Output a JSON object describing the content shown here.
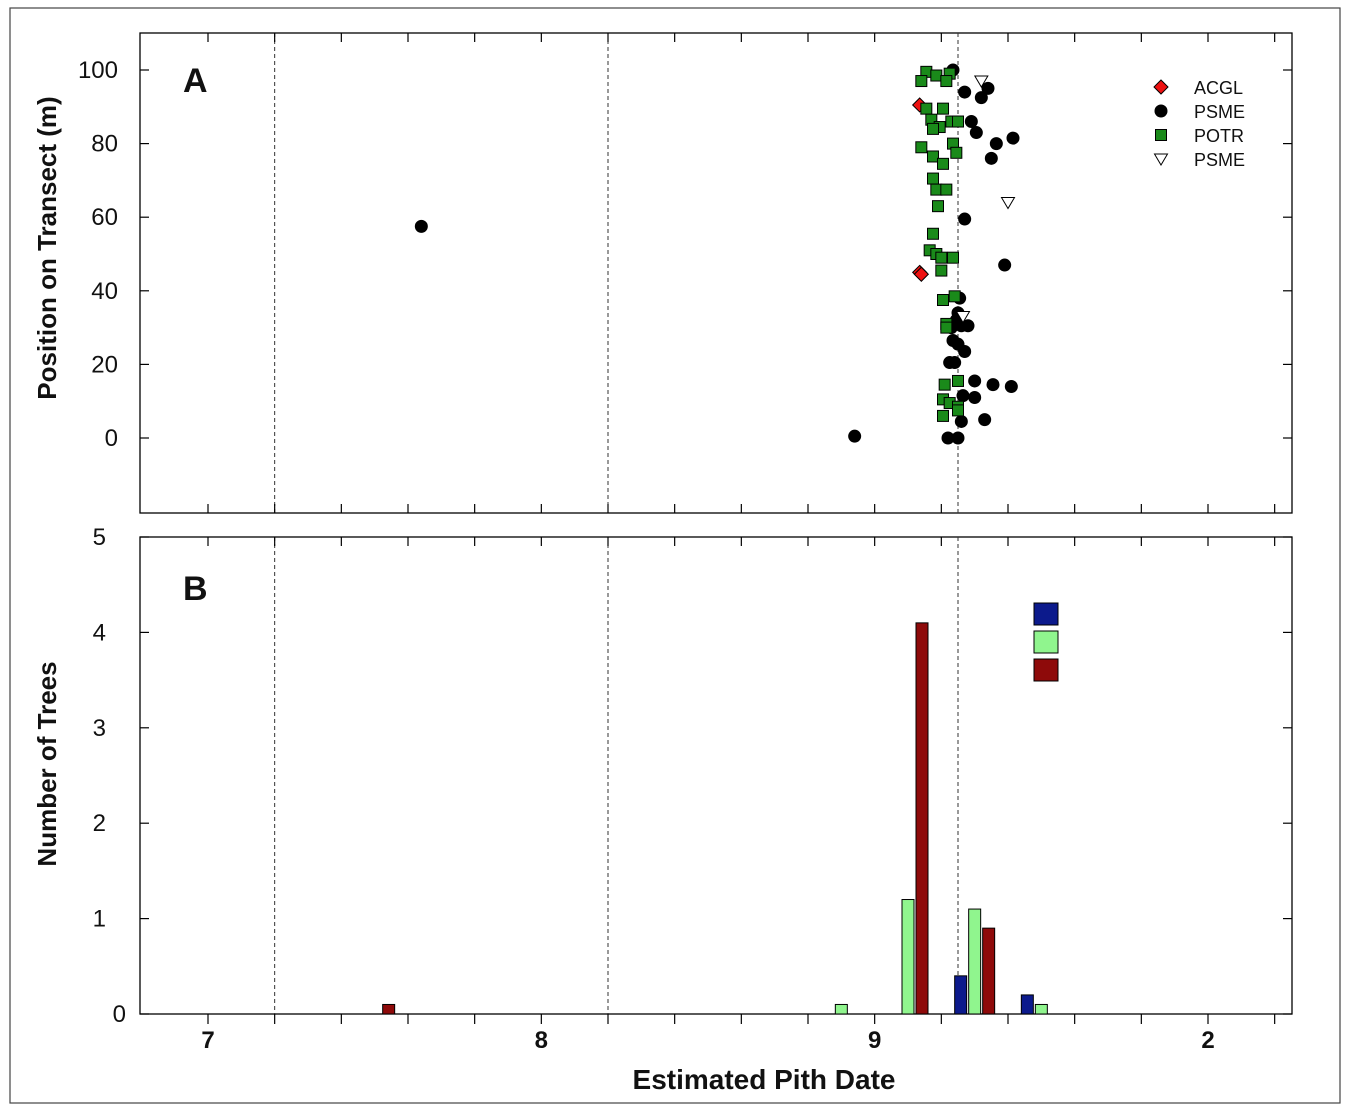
{
  "chart_data": [
    {
      "type": "scatter",
      "panel_label": "A",
      "xlabel": "",
      "ylabel": "Position on Transect (m)",
      "xlim": [
        1700,
        2025
      ],
      "ylim": [
        -20,
        110
      ],
      "x_ticks": [
        1700,
        1800,
        1900,
        2000
      ],
      "x_tick_labels": [
        "",
        "",
        "",
        ""
      ],
      "y_ticks": [
        0,
        20,
        40,
        60,
        80,
        100
      ],
      "y_tick_labels": [
        "0",
        "20",
        "40",
        "60",
        "80",
        "100"
      ],
      "reference_lines_x": [
        1720,
        1820,
        1925
      ],
      "grid": false,
      "legend_position": "top-right",
      "series": [
        {
          "name": "ACGL",
          "marker": "diamond",
          "color": "#ee1111",
          "points": [
            [
              1913.5,
              90.5
            ],
            [
              1913.5,
              45.0
            ],
            [
              1914,
              44.5
            ]
          ]
        },
        {
          "name": "PSME",
          "marker": "circle",
          "color": "#000000",
          "points": [
            [
              1764,
              57.5
            ],
            [
              1894,
              0.5
            ],
            [
              1923.5,
              100
            ],
            [
              1927,
              94
            ],
            [
              1932,
              92.5
            ],
            [
              1934,
              95
            ],
            [
              1929,
              86
            ],
            [
              1930.5,
              83
            ],
            [
              1936.5,
              80
            ],
            [
              1941.5,
              81.5
            ],
            [
              1935,
              76
            ],
            [
              1927,
              59.5
            ],
            [
              1939,
              47
            ],
            [
              1925.5,
              38
            ],
            [
              1925,
              34
            ],
            [
              1924.5,
              32
            ],
            [
              1923,
              30
            ],
            [
              1926,
              30.5
            ],
            [
              1928,
              30.5
            ],
            [
              1923.5,
              26.5
            ],
            [
              1925,
              25.5
            ],
            [
              1927,
              23.5
            ],
            [
              1922.5,
              20.5
            ],
            [
              1924,
              20.5
            ],
            [
              1930,
              15.5
            ],
            [
              1935.5,
              14.5
            ],
            [
              1941,
              14
            ],
            [
              1926.5,
              11.5
            ],
            [
              1930,
              11
            ],
            [
              1926,
              4.5
            ],
            [
              1933,
              5
            ],
            [
              1922,
              0
            ],
            [
              1925,
              0
            ]
          ]
        },
        {
          "name": "POTR",
          "marker": "square",
          "color": "#1a8a1a",
          "points": [
            [
              1915.5,
              99.5
            ],
            [
              1918.5,
              98.5
            ],
            [
              1922.5,
              99
            ],
            [
              1914,
              97
            ],
            [
              1921.5,
              97
            ],
            [
              1915.5,
              89.5
            ],
            [
              1920.5,
              89.5
            ],
            [
              1917,
              86.5
            ],
            [
              1919.5,
              84.5
            ],
            [
              1917.5,
              84
            ],
            [
              1923,
              86
            ],
            [
              1925,
              86
            ],
            [
              1923.5,
              80
            ],
            [
              1914,
              79
            ],
            [
              1917.5,
              76.5
            ],
            [
              1920.5,
              74.5
            ],
            [
              1924.5,
              77.5
            ],
            [
              1917.5,
              70.5
            ],
            [
              1918.5,
              67.5
            ],
            [
              1921.5,
              67.5
            ],
            [
              1919,
              63
            ],
            [
              1917.5,
              55.5
            ],
            [
              1916.5,
              51
            ],
            [
              1918.5,
              50
            ],
            [
              1920,
              49
            ],
            [
              1923.5,
              49
            ],
            [
              1920,
              45.5
            ],
            [
              1920.5,
              37.5
            ],
            [
              1924,
              38.5
            ],
            [
              1921.5,
              31
            ],
            [
              1921.5,
              30
            ],
            [
              1925,
              15.5
            ],
            [
              1921,
              14.5
            ],
            [
              1920.5,
              10.5
            ],
            [
              1922.5,
              9.5
            ],
            [
              1925,
              8.5
            ],
            [
              1925,
              7.5
            ],
            [
              1920.5,
              6
            ]
          ]
        },
        {
          "name": "PSME",
          "marker": "triangle-down",
          "color": "#000000",
          "points": [
            [
              1932,
              97
            ],
            [
              1940,
              64
            ],
            [
              1926.5,
              33
            ]
          ]
        }
      ]
    },
    {
      "type": "bar",
      "panel_label": "B",
      "xlabel": "Estimated Pith Date",
      "ylabel": "Number of Trees",
      "xlim": [
        1700,
        2025
      ],
      "ylim": [
        0,
        5
      ],
      "x_ticks": [
        1700,
        1800,
        1900,
        2000
      ],
      "x_tick_labels": [
        "7",
        "8",
        "9",
        "2"
      ],
      "y_ticks": [
        0,
        1,
        2,
        3,
        4,
        5
      ],
      "y_tick_labels": [
        "0",
        "1",
        "2",
        "3",
        "4",
        "5"
      ],
      "reference_lines_x": [
        1720,
        1820,
        1925
      ],
      "grid": false,
      "legend_position": "top-right",
      "bin_width": 20,
      "bins": [
        1750,
        1890,
        1910,
        1930,
        1950
      ],
      "series": [
        {
          "name": "",
          "color": "#0c1a8c",
          "values": [
            0,
            0,
            0,
            0.4,
            0.2
          ]
        },
        {
          "name": "",
          "color": "#90f58e",
          "values": [
            0,
            0.1,
            1.2,
            1.1,
            0.1
          ]
        },
        {
          "name": "",
          "color": "#8e0a0a",
          "values": [
            0.1,
            0,
            4.1,
            0.9,
            0
          ]
        }
      ]
    }
  ]
}
